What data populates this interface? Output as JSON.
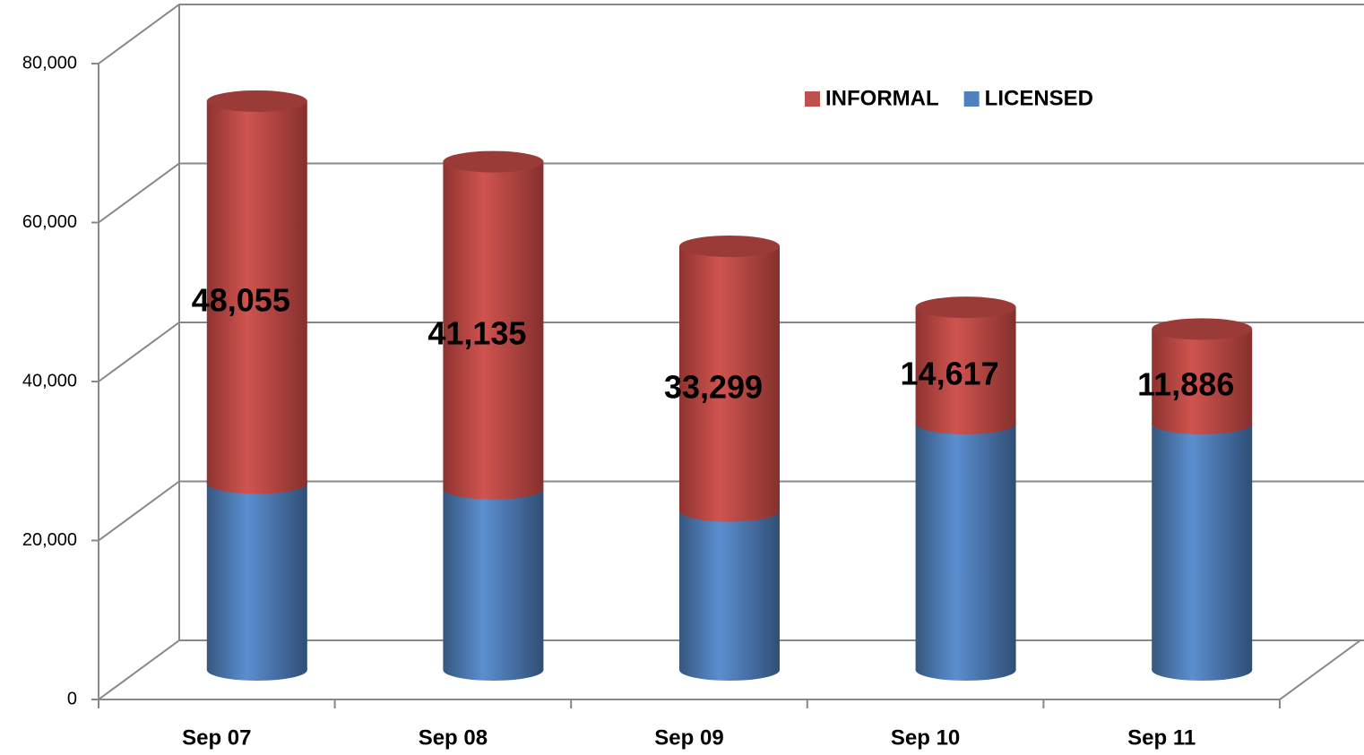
{
  "chart_data": {
    "type": "bar3d_stacked_cylinder",
    "categories": [
      "Sep 07",
      "Sep 08",
      "Sep 09",
      "Sep 10",
      "Sep 11"
    ],
    "series": [
      {
        "name": "LICENSED",
        "color": "#4f81bd",
        "values": [
          23500,
          22800,
          20000,
          31000,
          31000
        ]
      },
      {
        "name": "INFORMAL",
        "color": "#c0504d",
        "values": [
          48055,
          41135,
          33299,
          14617,
          11886
        ],
        "value_labels": [
          "48,055",
          "41,135",
          "33,299",
          "14,617",
          "11,886"
        ]
      }
    ],
    "ylim": [
      0,
      80000
    ],
    "yticks": [
      0,
      {
        "value": 20000,
        "label": "20,000"
      },
      {
        "value": 40000,
        "label": "40,000"
      },
      {
        "value": 60000,
        "label": "60,000"
      },
      {
        "value": 80000,
        "label": "80,000"
      }
    ],
    "grid": true,
    "legend": "top-right"
  }
}
